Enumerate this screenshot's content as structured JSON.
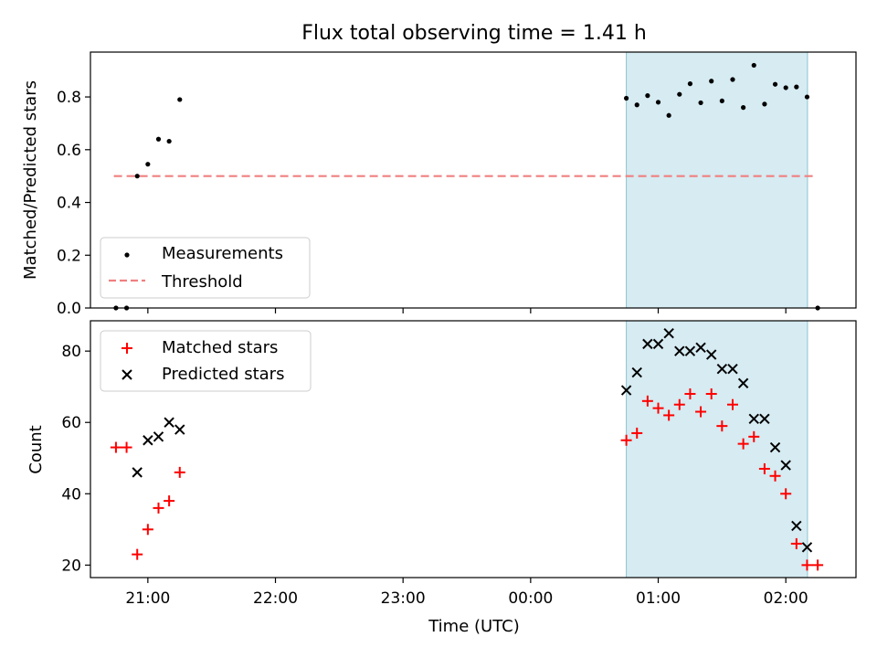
{
  "figure": {
    "title": "Flux total observing time = 1.41 h",
    "xlabel": "Time (UTC)",
    "shaded_region": {
      "x_start_hours_after_midnight": 0.75,
      "x_end_hours_after_midnight": 2.17,
      "color": "#add8e6"
    },
    "x_ticks": [
      "21:00",
      "22:00",
      "23:00",
      "00:00",
      "01:00",
      "02:00"
    ]
  },
  "chart_data": [
    {
      "type": "scatter",
      "ylabel": "Matched/Predicted stars",
      "xlim": [
        "20:33",
        "02:33"
      ],
      "ylim": [
        0,
        0.97
      ],
      "y_ticks": [
        "0.0",
        "0.2",
        "0.4",
        "0.6",
        "0.8"
      ],
      "legend": {
        "placement": "lower-left",
        "entries": [
          "Measurements",
          "Threshold"
        ]
      },
      "threshold": {
        "name": "Threshold",
        "value": 0.5,
        "x_start": "20:44",
        "x_end": "02:13",
        "color": "#f08080"
      },
      "series": [
        {
          "name": "Measurements",
          "color": "#000000",
          "points": [
            [
              "20:45",
              0.0
            ],
            [
              "20:50",
              0.0
            ],
            [
              "20:55",
              0.5
            ],
            [
              "21:00",
              0.545
            ],
            [
              "21:05",
              0.64
            ],
            [
              "21:10",
              0.632
            ],
            [
              "21:15",
              0.79
            ],
            [
              "00:45",
              0.795
            ],
            [
              "00:50",
              0.77
            ],
            [
              "00:55",
              0.805
            ],
            [
              "01:00",
              0.78
            ],
            [
              "01:05",
              0.73
            ],
            [
              "01:10",
              0.81
            ],
            [
              "01:15",
              0.85
            ],
            [
              "01:20",
              0.778
            ],
            [
              "01:25",
              0.86
            ],
            [
              "01:30",
              0.785
            ],
            [
              "01:35",
              0.866
            ],
            [
              "01:40",
              0.76
            ],
            [
              "01:45",
              0.92
            ],
            [
              "01:50",
              0.773
            ],
            [
              "01:55",
              0.848
            ],
            [
              "02:00",
              0.835
            ],
            [
              "02:05",
              0.838
            ],
            [
              "02:10",
              0.8
            ],
            [
              "02:15",
              0.0
            ]
          ]
        }
      ]
    },
    {
      "type": "scatter",
      "ylabel": "Count",
      "xlim": [
        "20:33",
        "02:33"
      ],
      "ylim": [
        16.5,
        88.5
      ],
      "y_ticks": [
        "20",
        "40",
        "60",
        "80"
      ],
      "legend": {
        "placement": "top-left",
        "entries": [
          "Matched stars",
          "Predicted stars"
        ]
      },
      "series": [
        {
          "name": "Matched stars",
          "color": "#ff0000",
          "marker": "plus",
          "points": [
            [
              "20:45",
              53
            ],
            [
              "20:50",
              53
            ],
            [
              "20:55",
              23
            ],
            [
              "21:00",
              30
            ],
            [
              "21:05",
              36
            ],
            [
              "21:10",
              38
            ],
            [
              "21:15",
              46
            ],
            [
              "00:45",
              55
            ],
            [
              "00:50",
              57
            ],
            [
              "00:55",
              66
            ],
            [
              "01:00",
              64
            ],
            [
              "01:05",
              62
            ],
            [
              "01:10",
              65
            ],
            [
              "01:15",
              68
            ],
            [
              "01:20",
              63
            ],
            [
              "01:25",
              68
            ],
            [
              "01:30",
              59
            ],
            [
              "01:35",
              65
            ],
            [
              "01:40",
              54
            ],
            [
              "01:45",
              56
            ],
            [
              "01:50",
              47
            ],
            [
              "01:55",
              45
            ],
            [
              "02:00",
              40
            ],
            [
              "02:05",
              26
            ],
            [
              "02:10",
              20
            ],
            [
              "02:15",
              20
            ]
          ]
        },
        {
          "name": "Predicted stars",
          "color": "#000000",
          "marker": "x",
          "points": [
            [
              "20:55",
              46
            ],
            [
              "21:00",
              55
            ],
            [
              "21:05",
              56
            ],
            [
              "21:10",
              60
            ],
            [
              "21:15",
              58
            ],
            [
              "00:45",
              69
            ],
            [
              "00:50",
              74
            ],
            [
              "00:55",
              82
            ],
            [
              "01:00",
              82
            ],
            [
              "01:05",
              85
            ],
            [
              "01:10",
              80
            ],
            [
              "01:15",
              80
            ],
            [
              "01:20",
              81
            ],
            [
              "01:25",
              79
            ],
            [
              "01:30",
              75
            ],
            [
              "01:35",
              75
            ],
            [
              "01:40",
              71
            ],
            [
              "01:45",
              61
            ],
            [
              "01:50",
              61
            ],
            [
              "01:55",
              53
            ],
            [
              "02:00",
              48
            ],
            [
              "02:05",
              31
            ],
            [
              "02:10",
              25
            ]
          ]
        }
      ]
    }
  ]
}
